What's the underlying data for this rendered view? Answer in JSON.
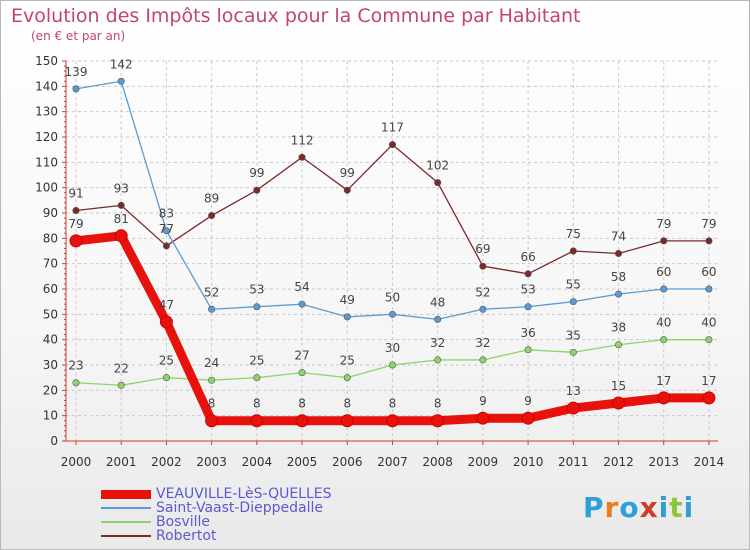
{
  "title": "Evolution des Impôts locaux pour la Commune par Habitant",
  "subtitle": "(en € et par an)",
  "logo": {
    "text": "Proxiti",
    "colors": [
      "#2f9fd7",
      "#e67e22",
      "#2f9fd7",
      "#d23a2e",
      "#2f9fd7",
      "#8cc63f",
      "#2f9fd7"
    ]
  },
  "chart_data": {
    "type": "line",
    "x": [
      "2000",
      "2001",
      "2002",
      "2003",
      "2004",
      "2005",
      "2006",
      "2007",
      "2008",
      "2009",
      "2010",
      "2011",
      "2012",
      "2013",
      "2014"
    ],
    "yticks": [
      "0",
      "10",
      "20",
      "30",
      "40",
      "50",
      "60",
      "70",
      "80",
      "90",
      "100",
      "110",
      "120",
      "130",
      "140",
      "150"
    ],
    "ylim": [
      0,
      150
    ],
    "grid": true,
    "legend_position": "bottom-left",
    "series": [
      {
        "name": "VEAUVILLE-LèS-QUELLES",
        "color": "#e8120c",
        "values": [
          79,
          81,
          47,
          8,
          8,
          8,
          8,
          8,
          8,
          9,
          9,
          13,
          15,
          17,
          17
        ]
      },
      {
        "name": "Saint-Vaast-Dieppedalle",
        "color": "#5b9bd5",
        "values": [
          139,
          142,
          83,
          52,
          53,
          54,
          49,
          50,
          48,
          52,
          53,
          55,
          58,
          60,
          60
        ]
      },
      {
        "name": "Bosville",
        "color": "#8fd46a",
        "values": [
          23,
          22,
          25,
          24,
          25,
          27,
          25,
          30,
          32,
          32,
          36,
          35,
          38,
          40,
          40
        ]
      },
      {
        "name": "Robertot",
        "color": "#7b2a2a",
        "values": [
          91,
          93,
          77,
          89,
          99,
          112,
          99,
          117,
          102,
          69,
          66,
          75,
          74,
          79,
          79
        ]
      }
    ]
  }
}
